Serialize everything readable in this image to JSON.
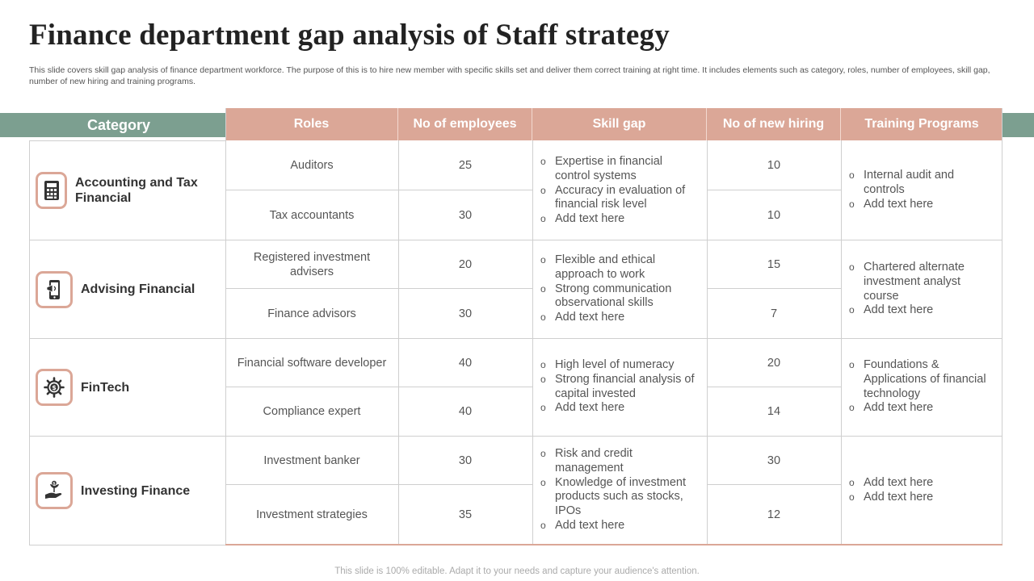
{
  "title": "Finance department gap analysis of Staff strategy",
  "subtitle": "This slide covers skill gap analysis of finance department workforce. The purpose of this is to hire new member with specific skills set and deliver them correct training at right time. It includes elements such as category, roles, number of employees, skill gap, number of new hiring and training programs.",
  "table": {
    "category_header": "Category",
    "headers": [
      "Roles",
      "No of employees",
      "Skill gap",
      "No of new hiring",
      "Training Programs"
    ],
    "groups": [
      {
        "category": "Accounting and Tax Financial",
        "icon": "calculator-icon",
        "rows": [
          {
            "role": "Auditors",
            "employees": "25",
            "hiring": "10"
          },
          {
            "role": "Tax accountants",
            "employees": "30",
            "hiring": "10"
          }
        ],
        "skill_gap": [
          "Expertise in financial control systems",
          "Accuracy in evaluation of financial risk level",
          "Add text here"
        ],
        "training": [
          "Internal audit and controls",
          "Add text here"
        ]
      },
      {
        "category": "Advising Financial",
        "icon": "mobile-megaphone-icon",
        "rows": [
          {
            "role": "Registered investment advisers",
            "employees": "20",
            "hiring": "15"
          },
          {
            "role": "Finance advisors",
            "employees": "30",
            "hiring": "7"
          }
        ],
        "skill_gap": [
          "Flexible and ethical approach to work",
          "Strong communication observational skills",
          "Add text here"
        ],
        "training": [
          "Chartered alternate investment analyst course",
          "Add text here"
        ]
      },
      {
        "category": "FinTech",
        "icon": "gear-dollar-icon",
        "rows": [
          {
            "role": "Financial software developer",
            "employees": "40",
            "hiring": "20"
          },
          {
            "role": "Compliance expert",
            "employees": "40",
            "hiring": "14"
          }
        ],
        "skill_gap": [
          "High level of numeracy",
          "Strong financial analysis of capital invested",
          "Add text here"
        ],
        "training": [
          "Foundations & Applications of financial technology",
          "Add text here"
        ]
      },
      {
        "category": "Investing Finance",
        "icon": "hand-money-plant-icon",
        "rows": [
          {
            "role": "Investment banker",
            "employees": "30",
            "hiring": "30"
          },
          {
            "role": "Investment strategies",
            "employees": "35",
            "hiring": "12"
          }
        ],
        "skill_gap": [
          "Risk and credit management",
          "Knowledge of investment products such as stocks, IPOs",
          "Add text here"
        ],
        "training": [
          "Add text here",
          "Add text here"
        ]
      }
    ]
  },
  "footer": "This slide is 100% editable. Adapt it to your needs and capture your audience's attention.",
  "colors": {
    "header_fill": "#dba797",
    "band": "#7c9f90",
    "icon_border": "#dba797"
  }
}
